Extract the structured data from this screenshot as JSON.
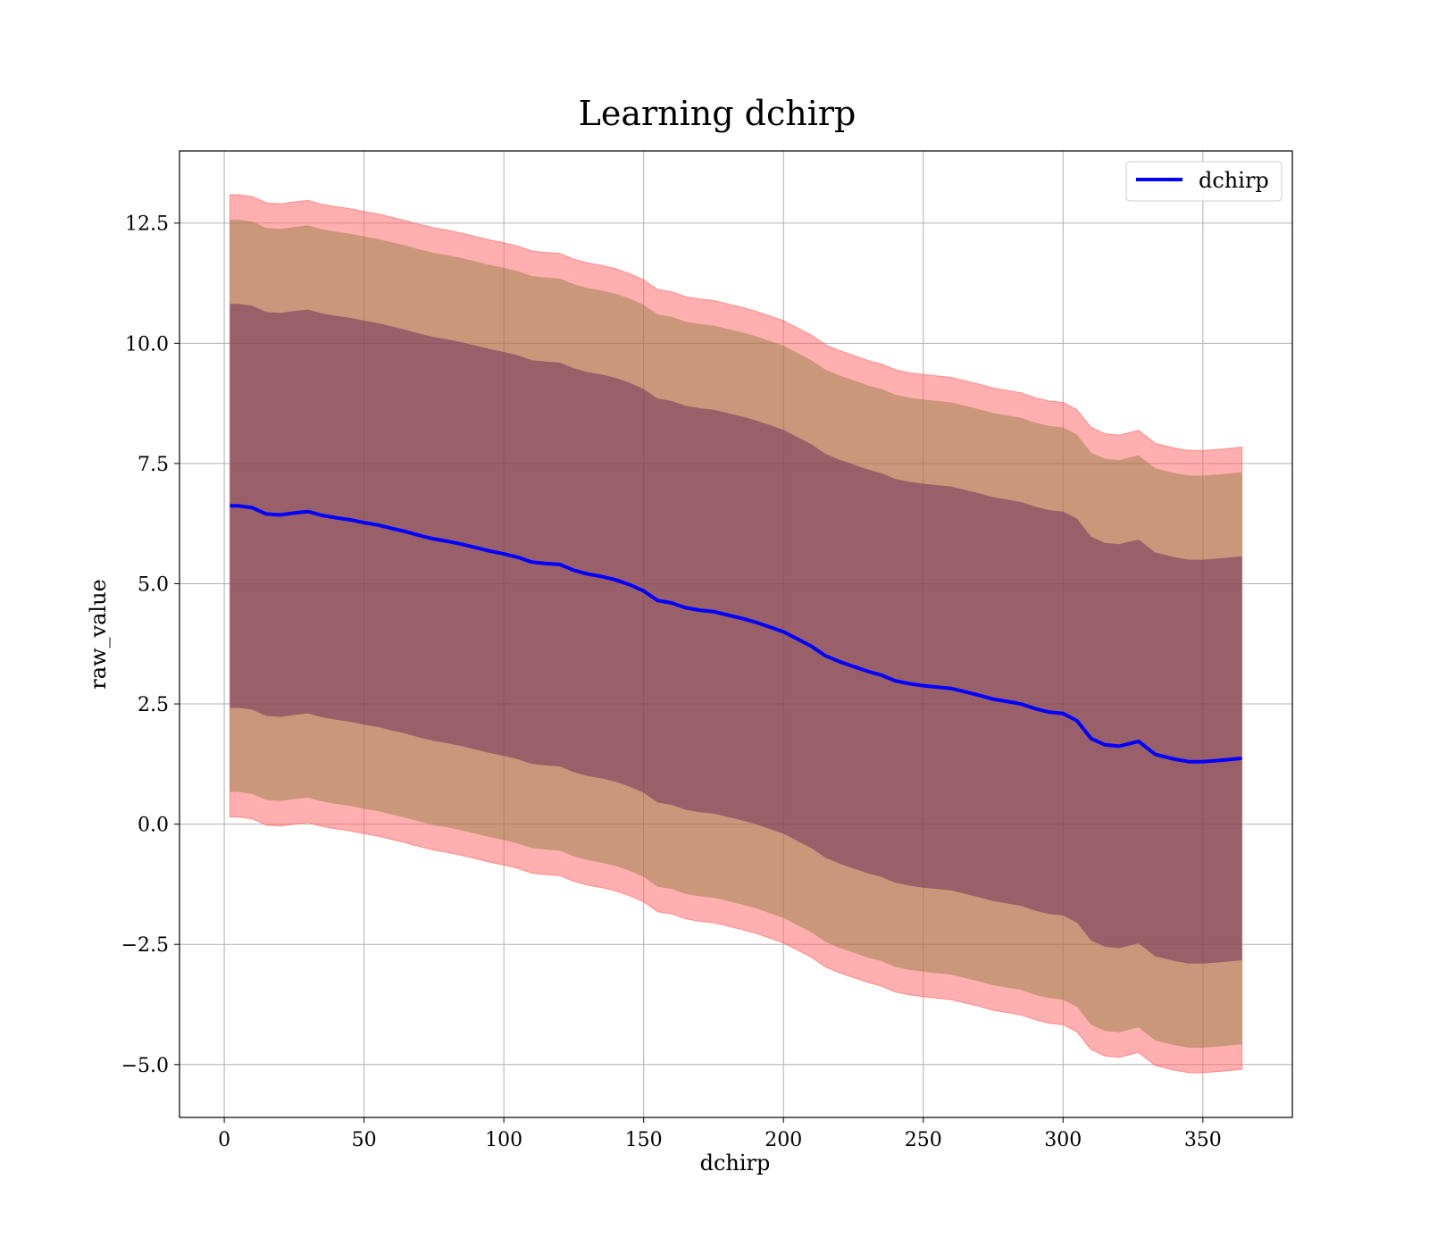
{
  "chart_data": {
    "type": "line",
    "title": "Learning dchirp",
    "xlabel": "dchirp",
    "ylabel": "raw_value",
    "xlim": [
      -16,
      382
    ],
    "ylim": [
      -6.1,
      14.0
    ],
    "xticks": [
      0,
      50,
      100,
      150,
      200,
      250,
      300,
      350
    ],
    "xtick_labels": [
      "0",
      "50",
      "100",
      "150",
      "200",
      "250",
      "300",
      "350"
    ],
    "yticks": [
      -5.0,
      -2.5,
      0.0,
      2.5,
      5.0,
      7.5,
      10.0,
      12.5
    ],
    "ytick_labels": [
      "−5.0",
      "−2.5",
      "0.0",
      "2.5",
      "5.0",
      "7.5",
      "10.0",
      "12.5"
    ],
    "grid": true,
    "legend": {
      "placement": "top-right",
      "entries": [
        "dchirp"
      ]
    },
    "colors": {
      "line": "#0000ff",
      "band_outer": "#ff5f5f",
      "band_middle": "#8a7a3a",
      "band_inner": "#6a2a5a"
    },
    "series": [
      {
        "name": "dchirp",
        "x": [
          2,
          5,
          10,
          15,
          20,
          25,
          30,
          35,
          40,
          45,
          50,
          55,
          60,
          65,
          70,
          75,
          80,
          85,
          90,
          95,
          100,
          105,
          110,
          115,
          120,
          125,
          130,
          135,
          140,
          145,
          150,
          155,
          160,
          165,
          170,
          175,
          180,
          185,
          190,
          195,
          200,
          205,
          210,
          215,
          220,
          225,
          230,
          235,
          240,
          245,
          250,
          255,
          260,
          265,
          270,
          275,
          280,
          285,
          290,
          295,
          300,
          305,
          310,
          315,
          320,
          327,
          333,
          340,
          345,
          350,
          357,
          364
        ],
        "y": [
          6.62,
          6.62,
          6.58,
          6.45,
          6.43,
          6.47,
          6.5,
          6.42,
          6.37,
          6.33,
          6.27,
          6.22,
          6.15,
          6.08,
          6.0,
          5.93,
          5.88,
          5.82,
          5.75,
          5.68,
          5.62,
          5.55,
          5.45,
          5.42,
          5.4,
          5.28,
          5.2,
          5.15,
          5.08,
          4.98,
          4.85,
          4.65,
          4.6,
          4.5,
          4.45,
          4.42,
          4.35,
          4.28,
          4.2,
          4.1,
          4.0,
          3.85,
          3.7,
          3.5,
          3.38,
          3.28,
          3.18,
          3.1,
          2.98,
          2.92,
          2.88,
          2.85,
          2.82,
          2.75,
          2.68,
          2.6,
          2.55,
          2.5,
          2.4,
          2.33,
          2.3,
          2.15,
          1.78,
          1.65,
          1.62,
          1.72,
          1.45,
          1.35,
          1.3,
          1.3,
          1.33,
          1.37
        ],
        "band_inner_halfwidth": [
          4.2,
          4.2,
          4.2,
          4.2,
          4.2,
          4.2,
          4.2,
          4.2,
          4.2,
          4.2,
          4.2,
          4.2,
          4.2,
          4.2,
          4.2,
          4.2,
          4.2,
          4.2,
          4.2,
          4.2,
          4.2,
          4.2,
          4.2,
          4.2,
          4.2,
          4.2,
          4.2,
          4.2,
          4.2,
          4.2,
          4.2,
          4.2,
          4.2,
          4.2,
          4.2,
          4.2,
          4.2,
          4.2,
          4.2,
          4.2,
          4.2,
          4.2,
          4.2,
          4.2,
          4.2,
          4.2,
          4.2,
          4.2,
          4.2,
          4.2,
          4.2,
          4.2,
          4.2,
          4.2,
          4.2,
          4.2,
          4.2,
          4.2,
          4.2,
          4.2,
          4.2,
          4.2,
          4.2,
          4.2,
          4.2,
          4.2,
          4.2,
          4.2,
          4.2,
          4.2,
          4.2,
          4.2
        ],
        "band_middle_halfwidth": [
          5.95,
          5.95,
          5.95,
          5.95,
          5.95,
          5.95,
          5.95,
          5.95,
          5.95,
          5.95,
          5.95,
          5.95,
          5.95,
          5.95,
          5.95,
          5.95,
          5.95,
          5.95,
          5.95,
          5.95,
          5.95,
          5.95,
          5.95,
          5.95,
          5.95,
          5.95,
          5.95,
          5.95,
          5.95,
          5.95,
          5.95,
          5.95,
          5.95,
          5.95,
          5.95,
          5.95,
          5.95,
          5.95,
          5.95,
          5.95,
          5.95,
          5.95,
          5.95,
          5.95,
          5.95,
          5.95,
          5.95,
          5.95,
          5.95,
          5.95,
          5.95,
          5.95,
          5.95,
          5.95,
          5.95,
          5.95,
          5.95,
          5.95,
          5.95,
          5.95,
          5.95,
          5.95,
          5.95,
          5.95,
          5.95,
          5.95,
          5.95,
          5.95,
          5.95,
          5.95,
          5.95,
          5.95
        ],
        "band_outer_halfwidth": [
          6.47,
          6.47,
          6.47,
          6.47,
          6.47,
          6.47,
          6.47,
          6.47,
          6.47,
          6.47,
          6.47,
          6.47,
          6.47,
          6.47,
          6.47,
          6.47,
          6.47,
          6.47,
          6.47,
          6.47,
          6.47,
          6.47,
          6.47,
          6.47,
          6.47,
          6.47,
          6.47,
          6.47,
          6.47,
          6.47,
          6.47,
          6.47,
          6.47,
          6.47,
          6.47,
          6.47,
          6.47,
          6.47,
          6.47,
          6.47,
          6.47,
          6.47,
          6.47,
          6.47,
          6.47,
          6.47,
          6.47,
          6.47,
          6.47,
          6.47,
          6.47,
          6.47,
          6.47,
          6.47,
          6.47,
          6.47,
          6.47,
          6.47,
          6.47,
          6.47,
          6.47,
          6.47,
          6.47,
          6.47,
          6.47,
          6.47,
          6.47,
          6.47,
          6.47,
          6.47,
          6.47,
          6.47
        ]
      }
    ]
  }
}
